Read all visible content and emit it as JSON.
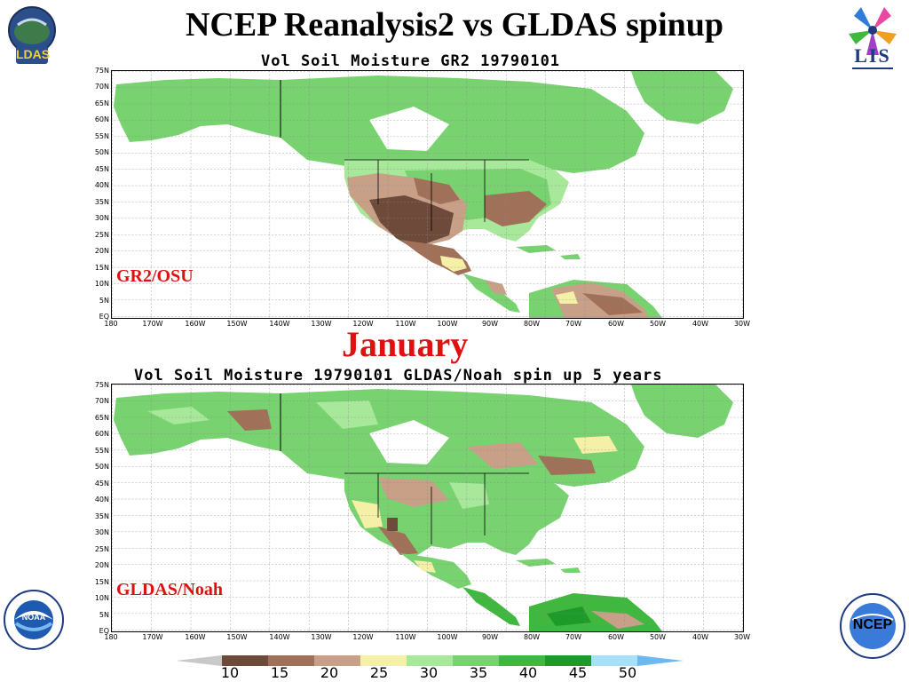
{
  "title": "NCEP Reanalysis2 vs GLDAS spinup",
  "logos": {
    "ldas": "LDAS",
    "lis": "LIS",
    "noaa": "NOAA",
    "ncep": "NCEP"
  },
  "period_label": "January",
  "lat_ticks": [
    "75N",
    "70N",
    "65N",
    "60N",
    "55N",
    "50N",
    "45N",
    "40N",
    "35N",
    "30N",
    "25N",
    "20N",
    "15N",
    "10N",
    "5N",
    "EQ"
  ],
  "lon_ticks": [
    "180",
    "170W",
    "160W",
    "150W",
    "140W",
    "130W",
    "120W",
    "110W",
    "100W",
    "90W",
    "80W",
    "70W",
    "60W",
    "50W",
    "40W",
    "30W"
  ],
  "maps": [
    {
      "title": "Vol Soil Moisture GR2 19790101",
      "label": "GR2/OSU"
    },
    {
      "title": "Vol Soil Moisture 19790101 GLDAS/Noah spin up 5 years",
      "label": "GLDAS/Noah"
    }
  ],
  "colorbar": {
    "ticks": [
      "10",
      "15",
      "20",
      "25",
      "30",
      "35",
      "40",
      "45",
      "50"
    ],
    "colors": [
      "#c8c8c8",
      "#6e4a3a",
      "#a07058",
      "#c8a088",
      "#f5f0a8",
      "#a8e89a",
      "#78d270",
      "#40b840",
      "#1e9a28",
      "#a8e0f8",
      "#6cb8f0"
    ]
  },
  "colors": {
    "ocean": "#ffffff",
    "land_green": "#78d270",
    "land_light_green": "#a8e89a",
    "land_dark_green": "#40b840",
    "dry_dark": "#6e4a3a",
    "dry_mid": "#a07058",
    "dry_light": "#c8a088",
    "yellow": "#f5f0a8",
    "accent_red": "#e01010"
  }
}
